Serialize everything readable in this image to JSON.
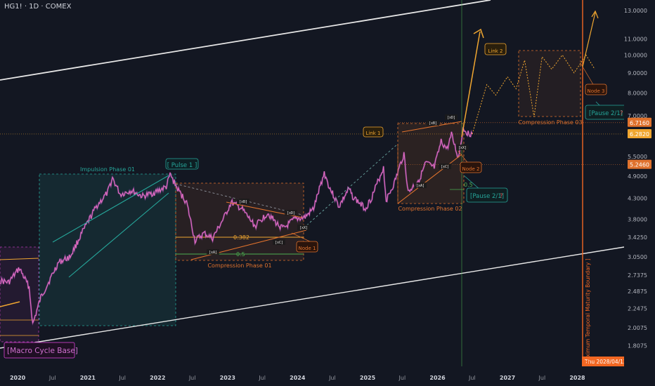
{
  "header": {
    "symbol": "HG1! · 1D · COMEX"
  },
  "colors": {
    "background": "#131722",
    "price": "#e86fc0",
    "price_dark": "#a04fb8",
    "teal": "#26a69a",
    "orange": "#e0722d",
    "gold": "#f0a630",
    "white": "#e8e8e8",
    "green_line": "#4caf50",
    "magenta": "#b03ab0",
    "boundary": "#f26722"
  },
  "chart_data": {
    "type": "line",
    "symbol": "HG1!",
    "interval": "1D",
    "exchange": "COMEX",
    "y_scale": "log",
    "ylim": [
      1.6,
      13.6
    ],
    "y_ticks": [
      13.0,
      11.0,
      10.0,
      9.0,
      8.0,
      7.0,
      5.5,
      4.9,
      4.3,
      3.8,
      3.425,
      3.05,
      2.7375,
      2.4875,
      2.2475,
      2.0075,
      1.8075
    ],
    "y_tick_labels": [
      "13.0000",
      "11.0000",
      "10.0000",
      "9.0000",
      "8.0000",
      "7.0000",
      "5.5000",
      "4.9000",
      "4.3000",
      "3.8000",
      "3.4250",
      "3.0500",
      "2.7375",
      "2.4875",
      "2.2475",
      "2.0075",
      "1.8075"
    ],
    "x_ticks": [
      "2020",
      "Jul",
      "2021",
      "Jul",
      "2022",
      "Jul",
      "2023",
      "Jul",
      "2024",
      "Jul",
      "2025",
      "Jul",
      "2026",
      "Jul",
      "2027",
      "Jul",
      "2028"
    ],
    "x_tick_dates": [
      "2020-01-01",
      "2020-07-01",
      "2021-01-01",
      "2021-07-01",
      "2022-01-01",
      "2022-07-01",
      "2023-01-01",
      "2023-07-01",
      "2024-01-01",
      "2024-07-01",
      "2025-01-01",
      "2025-07-01",
      "2026-01-01",
      "2026-07-01",
      "2027-01-01",
      "2027-07-01",
      "2028-01-01"
    ],
    "xlim": [
      "2019-10-01",
      "2028-09-01"
    ],
    "price_labels": [
      {
        "value": 6.716,
        "text": "6.7160",
        "color": "#e0722d"
      },
      {
        "value": 6.282,
        "text": "6.2820",
        "color": "#f0a630"
      },
      {
        "value": 5.246,
        "text": "5.2460",
        "color": "#e0722d"
      }
    ],
    "series": [
      {
        "name": "",
        "x": [
          "2019-10-01",
          "2019-11-15",
          "2020-01-10",
          "2020-03-01",
          "2020-03-20",
          "2020-05-01",
          "2020-06-15",
          "2020-08-01",
          "2020-10-01",
          "2020-12-01",
          "2021-02-15",
          "2021-04-15",
          "2021-05-10",
          "2021-06-20",
          "2021-08-15",
          "2021-10-15",
          "2021-12-15",
          "2022-02-15",
          "2022-03-07",
          "2022-04-20",
          "2022-06-01",
          "2022-07-15",
          "2022-09-01",
          "2022-10-15",
          "2022-12-15",
          "2023-01-20",
          "2023-03-15",
          "2023-05-25",
          "2023-07-30",
          "2023-09-15",
          "2023-10-20",
          "2023-12-15",
          "2024-02-10",
          "2024-03-25",
          "2024-05-20",
          "2024-06-15",
          "2024-08-05",
          "2024-09-25",
          "2024-10-15",
          "2024-12-20",
          "2025-01-20",
          "2025-03-25",
          "2025-04-08",
          "2025-05-20",
          "2025-07-10",
          "2025-08-01",
          "2025-10-01",
          "2025-11-01",
          "2025-12-15",
          "2026-01-20",
          "2026-02-20",
          "2026-03-15",
          "2026-04-20",
          "2026-05-15",
          "2026-06-10",
          "2026-07-01"
        ],
        "values": [
          2.65,
          2.62,
          2.85,
          2.55,
          2.05,
          2.4,
          2.65,
          2.95,
          3.05,
          3.5,
          4.1,
          4.45,
          4.85,
          4.4,
          4.5,
          4.35,
          4.45,
          4.6,
          4.95,
          4.5,
          4.2,
          3.35,
          3.5,
          3.4,
          3.85,
          4.2,
          4.05,
          3.65,
          3.95,
          3.7,
          3.6,
          3.8,
          3.85,
          4.05,
          5.0,
          4.6,
          4.1,
          4.55,
          4.35,
          4.05,
          4.3,
          5.15,
          4.25,
          4.7,
          5.6,
          4.45,
          4.85,
          5.3,
          5.15,
          6.0,
          5.75,
          6.25,
          5.45,
          6.5,
          6.3,
          6.28
        ]
      },
      {
        "name": "",
        "x": [
          "2026-07-01",
          "2026-09-15",
          "2026-11-01",
          "2027-01-01",
          "2027-02-15",
          "2027-04-01",
          "2027-05-20",
          "2027-07-01",
          "2027-08-20",
          "2027-10-15",
          "2027-12-15",
          "2028-02-15",
          "2028-04-01"
        ],
        "values": [
          6.28,
          8.4,
          7.9,
          8.8,
          8.2,
          9.7,
          6.95,
          9.9,
          9.2,
          10.0,
          9.0,
          10.0,
          9.2
        ]
      }
    ],
    "annotations": [
      {
        "text": "Impulsion Phase 01",
        "color": "#26a69a"
      },
      {
        "text": "[ Pulse 1 ]",
        "color": "#26a69a"
      },
      {
        "text": "Compression Phase 01",
        "color": "#e0722d"
      },
      {
        "text": "Compression Phase 02",
        "color": "#e0722d"
      },
      {
        "text": "Compression Phase 03",
        "color": "#e0722d"
      },
      {
        "text": "Link 1",
        "color": "#f0a630"
      },
      {
        "text": "Link 2",
        "color": "#f0a630"
      },
      {
        "text": "Node 1",
        "color": "#e0722d"
      },
      {
        "text": "Node 2",
        "color": "#e0722d"
      },
      {
        "text": "Node 3",
        "color": "#e0722d"
      },
      {
        "text": "[Pause 2/1] ?",
        "color": "#26a69a"
      },
      {
        "text": "[Macro Cycle Base]",
        "color": "#c040c0"
      },
      {
        "text": "[ Maximum Temporal Maturity Boundary ]",
        "color": "#f26722"
      },
      {
        "text": "Thu 2028/04/13",
        "color": "#f26722"
      },
      {
        "text": "0.382",
        "color": "#f0a630"
      },
      {
        "text": "0.5",
        "color": "#4caf50"
      },
      {
        "text": "[xA]"
      },
      {
        "text": "[xB]"
      },
      {
        "text": "[xC]"
      },
      {
        "text": "[xD]"
      },
      {
        "text": "[xX]"
      },
      {
        "text": "[xY]"
      }
    ]
  },
  "labels": {
    "impulsion": "Impulsion Phase 01",
    "pulse": "[ Pulse 1 ]",
    "comp1": "Compression Phase 01",
    "comp2": "Compression Phase 02",
    "comp3": "Compression Phase 03",
    "link1": "Link 1",
    "link2": "Link 2",
    "node1": "Node 1",
    "node2": "Node 2",
    "node3": "Node 3",
    "pause_a": "[Pause 2/1]",
    "pause_q": "?",
    "pause_b": "[Pause 2/1]",
    "macro": "[Macro Cycle Base]",
    "boundary": "[ Maximum Temporal Maturity Boundary ]",
    "boundary_date": "Thu 2028/04/13",
    "fib382": "0.382",
    "fib05a": "0.5",
    "fib05b": "0.5",
    "xa": "[xA]",
    "xb": "[xB]",
    "xc": "[xC]",
    "xd": "[xD]",
    "xx": "[xX]",
    "xy": "[xY]",
    "xa2": "[xA]",
    "xb2": "[xB]",
    "xc2": "[xC]",
    "xd2": "[xD]",
    "xx2": "[xX]",
    "xy2": "[xY]"
  }
}
